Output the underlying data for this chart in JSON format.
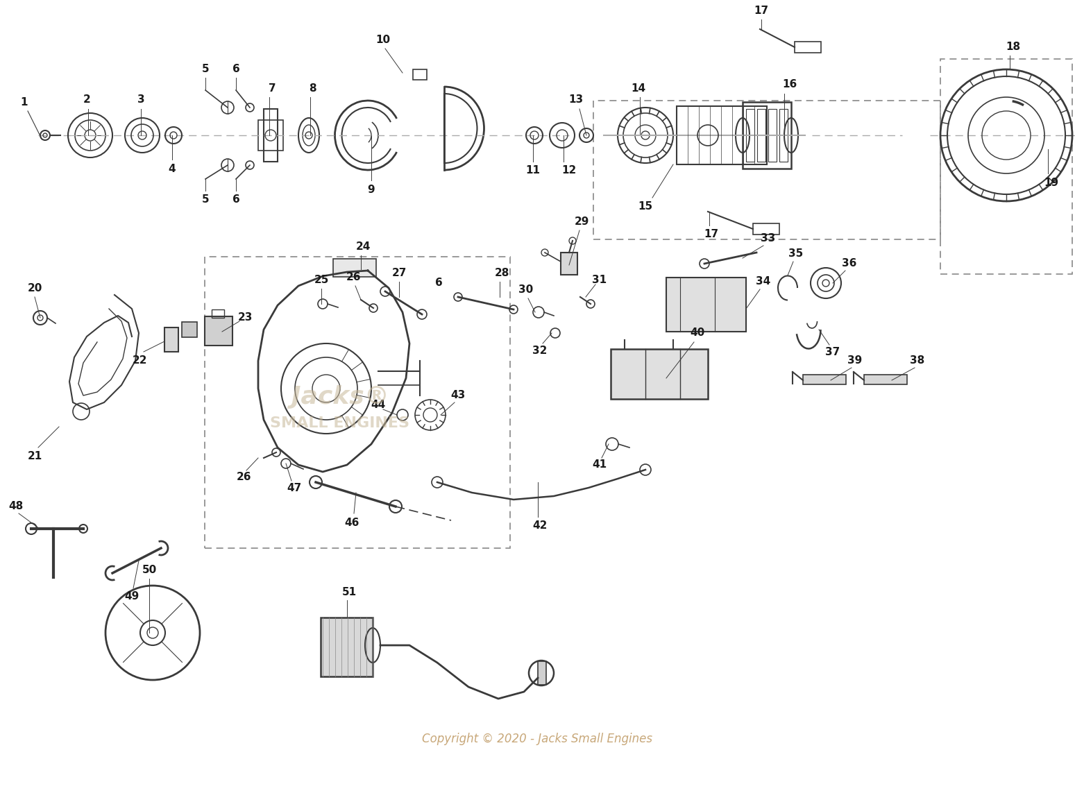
{
  "background_color": "#ffffff",
  "copyright_text": "Copyright © 2020 - Jacks Small Engines",
  "copyright_color": "#c8a87a",
  "line_color": "#3a3a3a",
  "label_color": "#1a1a1a",
  "dashed_box_color": "#999999",
  "label_fontsize": 11,
  "label_fontsize_sm": 9,
  "watermark1": "Jacks®",
  "watermark2": "SMALL ENGINES",
  "watermark_color": "#c8b89a",
  "figwidth": 15.49,
  "figheight": 11.53,
  "dpi": 100
}
